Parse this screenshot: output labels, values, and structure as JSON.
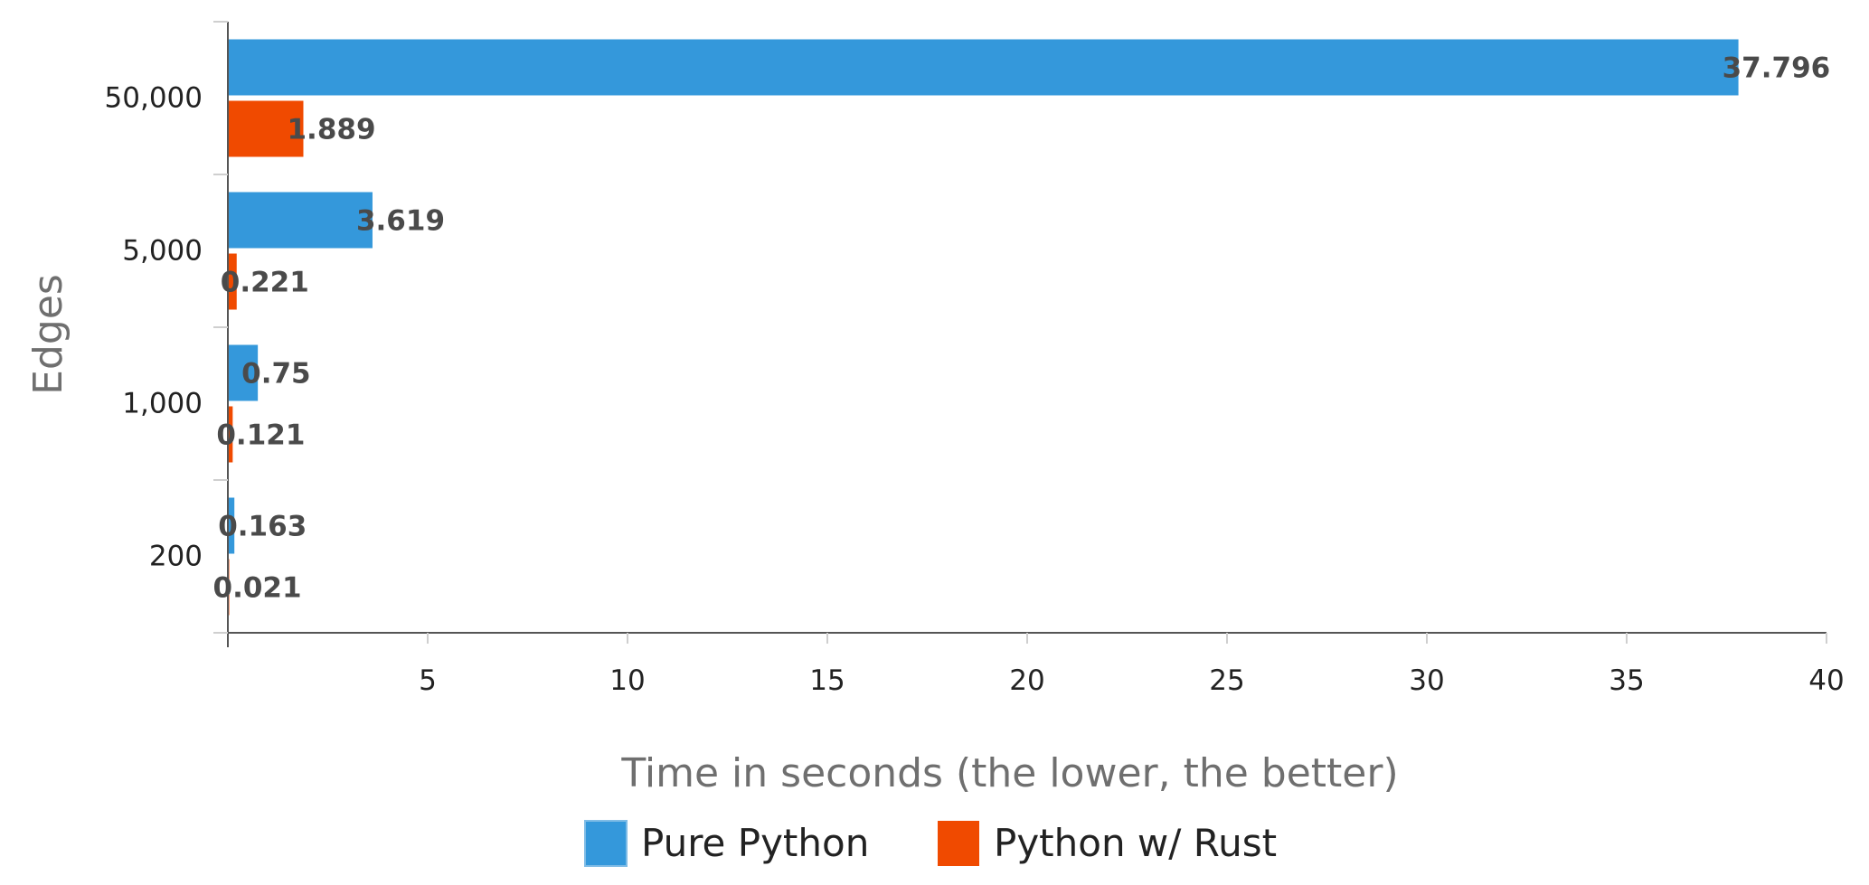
{
  "chart_data": {
    "type": "bar",
    "orientation": "horizontal",
    "categories": [
      "50,000",
      "5,000",
      "1,000",
      "200"
    ],
    "series": [
      {
        "name": "Pure Python",
        "color": "#3498db",
        "values": [
          37.796,
          3.619,
          0.75,
          0.163
        ]
      },
      {
        "name": "Python w/ Rust",
        "color": "#f04a00",
        "values": [
          1.889,
          0.221,
          0.121,
          0.021
        ]
      }
    ],
    "data_labels": [
      [
        "37.796",
        "3.619",
        "0.75",
        "0.163"
      ],
      [
        "1.889",
        "0.221",
        "0.121",
        "0.021"
      ]
    ],
    "xlabel": "Time in seconds (the lower, the better)",
    "ylabel": "Edges",
    "xlim": [
      0,
      40
    ],
    "x_ticks": [
      5,
      10,
      15,
      20,
      25,
      30,
      35,
      40
    ],
    "grid": false,
    "legend": "bottom"
  }
}
